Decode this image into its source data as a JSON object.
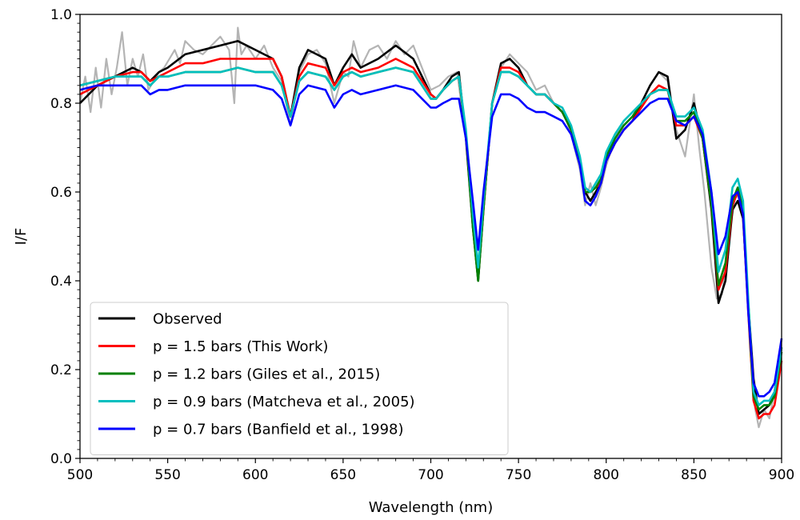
{
  "chart_data": {
    "type": "line",
    "title": "",
    "xlabel": "Wavelength (nm)",
    "ylabel": "I/F",
    "xlim": [
      500,
      900
    ],
    "ylim": [
      0.0,
      1.0
    ],
    "xticks": [
      500,
      550,
      600,
      650,
      700,
      750,
      800,
      850,
      900
    ],
    "xtick_labels": [
      "500",
      "550",
      "600",
      "650",
      "700",
      "750",
      "800",
      "850",
      "900"
    ],
    "yticks": [
      0.0,
      0.2,
      0.4,
      0.6,
      0.8,
      1.0
    ],
    "ytick_labels": [
      "0.0",
      "0.2",
      "0.4",
      "0.6",
      "0.8",
      "1.0"
    ],
    "grid": false,
    "legend_position": "lower-left",
    "noise_band": {
      "color": "#b4b4b4",
      "x": [
        500,
        503,
        506,
        509,
        512,
        515,
        518,
        521,
        524,
        527,
        530,
        533,
        536,
        539,
        542,
        545,
        548,
        551,
        554,
        557,
        560,
        565,
        570,
        575,
        580,
        585,
        588,
        590,
        592,
        595,
        600,
        605,
        610,
        615,
        620,
        625,
        630,
        635,
        640,
        645,
        650,
        653,
        656,
        660,
        665,
        670,
        675,
        680,
        685,
        690,
        695,
        700,
        705,
        710,
        715,
        720,
        725,
        727,
        730,
        735,
        740,
        745,
        750,
        755,
        760,
        765,
        770,
        775,
        780,
        785,
        788,
        791,
        794,
        797,
        800,
        805,
        810,
        815,
        820,
        825,
        830,
        835,
        840,
        845,
        850,
        853,
        856,
        860,
        863,
        866,
        870,
        874,
        878,
        882,
        885,
        887,
        890,
        893,
        896,
        900
      ],
      "values": [
        0.8,
        0.86,
        0.78,
        0.88,
        0.79,
        0.9,
        0.82,
        0.88,
        0.96,
        0.84,
        0.9,
        0.86,
        0.91,
        0.83,
        0.85,
        0.87,
        0.88,
        0.9,
        0.92,
        0.89,
        0.94,
        0.92,
        0.91,
        0.93,
        0.95,
        0.92,
        0.8,
        0.97,
        0.91,
        0.93,
        0.9,
        0.93,
        0.88,
        0.85,
        0.75,
        0.87,
        0.91,
        0.92,
        0.89,
        0.8,
        0.87,
        0.86,
        0.94,
        0.88,
        0.92,
        0.93,
        0.9,
        0.94,
        0.91,
        0.93,
        0.88,
        0.83,
        0.84,
        0.86,
        0.87,
        0.72,
        0.52,
        0.4,
        0.55,
        0.8,
        0.88,
        0.91,
        0.89,
        0.87,
        0.83,
        0.84,
        0.8,
        0.79,
        0.73,
        0.65,
        0.57,
        0.62,
        0.57,
        0.61,
        0.66,
        0.72,
        0.76,
        0.78,
        0.8,
        0.84,
        0.87,
        0.85,
        0.74,
        0.68,
        0.82,
        0.7,
        0.6,
        0.43,
        0.36,
        0.37,
        0.5,
        0.6,
        0.56,
        0.25,
        0.11,
        0.07,
        0.11,
        0.09,
        0.15,
        0.27
      ]
    },
    "x": [
      500,
      510,
      520,
      530,
      535,
      540,
      545,
      550,
      560,
      570,
      580,
      590,
      600,
      610,
      615,
      620,
      625,
      630,
      640,
      645,
      650,
      655,
      660,
      670,
      680,
      690,
      700,
      703,
      707,
      712,
      716,
      720,
      724,
      727,
      730,
      735,
      740,
      745,
      750,
      755,
      760,
      765,
      770,
      775,
      780,
      785,
      788,
      791,
      794,
      797,
      800,
      805,
      810,
      815,
      820,
      825,
      830,
      835,
      840,
      845,
      850,
      855,
      860,
      864,
      868,
      872,
      875,
      878,
      881,
      884,
      887,
      890,
      893,
      896,
      900
    ],
    "series": [
      {
        "name": "Observed",
        "color": "#000000",
        "values": [
          0.8,
          0.84,
          0.86,
          0.88,
          0.87,
          0.85,
          0.87,
          0.88,
          0.91,
          0.92,
          0.93,
          0.94,
          0.92,
          0.9,
          0.86,
          0.77,
          0.88,
          0.92,
          0.9,
          0.84,
          0.88,
          0.91,
          0.88,
          0.9,
          0.93,
          0.9,
          0.82,
          0.81,
          0.83,
          0.86,
          0.87,
          0.72,
          0.52,
          0.4,
          0.56,
          0.8,
          0.89,
          0.9,
          0.88,
          0.84,
          0.82,
          0.82,
          0.8,
          0.78,
          0.74,
          0.67,
          0.6,
          0.58,
          0.6,
          0.62,
          0.67,
          0.71,
          0.74,
          0.76,
          0.8,
          0.84,
          0.87,
          0.86,
          0.72,
          0.74,
          0.8,
          0.72,
          0.56,
          0.35,
          0.4,
          0.56,
          0.58,
          0.54,
          0.35,
          0.18,
          0.1,
          0.11,
          0.12,
          0.15,
          0.25
        ]
      },
      {
        "name": "p = 1.5 bars (This Work)",
        "color": "#ff0000",
        "values": [
          0.82,
          0.84,
          0.86,
          0.87,
          0.87,
          0.85,
          0.86,
          0.87,
          0.89,
          0.89,
          0.9,
          0.9,
          0.9,
          0.9,
          0.86,
          0.77,
          0.86,
          0.89,
          0.88,
          0.84,
          0.87,
          0.88,
          0.87,
          0.88,
          0.9,
          0.88,
          0.82,
          0.81,
          0.83,
          0.85,
          0.86,
          0.73,
          0.53,
          0.41,
          0.56,
          0.8,
          0.88,
          0.88,
          0.87,
          0.84,
          0.82,
          0.82,
          0.8,
          0.78,
          0.74,
          0.67,
          0.6,
          0.6,
          0.61,
          0.62,
          0.67,
          0.71,
          0.74,
          0.76,
          0.79,
          0.82,
          0.84,
          0.83,
          0.75,
          0.75,
          0.77,
          0.72,
          0.57,
          0.38,
          0.42,
          0.57,
          0.6,
          0.55,
          0.33,
          0.13,
          0.09,
          0.1,
          0.1,
          0.12,
          0.22
        ]
      },
      {
        "name": "p = 1.2 bars (Giles et al., 2015)",
        "color": "#008000",
        "values": [
          0.84,
          0.85,
          0.86,
          0.86,
          0.86,
          0.84,
          0.86,
          0.86,
          0.87,
          0.87,
          0.87,
          0.88,
          0.87,
          0.87,
          0.84,
          0.77,
          0.85,
          0.87,
          0.86,
          0.83,
          0.86,
          0.87,
          0.86,
          0.87,
          0.88,
          0.87,
          0.81,
          0.81,
          0.83,
          0.85,
          0.86,
          0.73,
          0.52,
          0.4,
          0.56,
          0.8,
          0.87,
          0.87,
          0.86,
          0.84,
          0.82,
          0.82,
          0.8,
          0.78,
          0.74,
          0.67,
          0.6,
          0.6,
          0.61,
          0.63,
          0.68,
          0.72,
          0.75,
          0.77,
          0.8,
          0.82,
          0.83,
          0.83,
          0.76,
          0.76,
          0.78,
          0.72,
          0.57,
          0.39,
          0.44,
          0.58,
          0.61,
          0.56,
          0.34,
          0.14,
          0.11,
          0.12,
          0.12,
          0.14,
          0.24
        ]
      },
      {
        "name": "p = 0.9 bars (Matcheva et al., 2005)",
        "color": "#00bfbf",
        "values": [
          0.84,
          0.85,
          0.86,
          0.86,
          0.86,
          0.84,
          0.86,
          0.86,
          0.87,
          0.87,
          0.87,
          0.88,
          0.87,
          0.87,
          0.84,
          0.77,
          0.85,
          0.87,
          0.86,
          0.83,
          0.86,
          0.87,
          0.86,
          0.87,
          0.88,
          0.87,
          0.81,
          0.81,
          0.83,
          0.85,
          0.86,
          0.74,
          0.55,
          0.43,
          0.58,
          0.8,
          0.87,
          0.87,
          0.86,
          0.84,
          0.82,
          0.82,
          0.8,
          0.79,
          0.75,
          0.68,
          0.61,
          0.6,
          0.62,
          0.64,
          0.69,
          0.73,
          0.76,
          0.78,
          0.8,
          0.82,
          0.83,
          0.83,
          0.77,
          0.77,
          0.79,
          0.74,
          0.6,
          0.42,
          0.47,
          0.61,
          0.63,
          0.58,
          0.36,
          0.15,
          0.12,
          0.13,
          0.13,
          0.15,
          0.25
        ]
      },
      {
        "name": "p = 0.7 bars (Banfield et al., 1998)",
        "color": "#0000ff",
        "values": [
          0.83,
          0.84,
          0.84,
          0.84,
          0.84,
          0.82,
          0.83,
          0.83,
          0.84,
          0.84,
          0.84,
          0.84,
          0.84,
          0.83,
          0.81,
          0.75,
          0.82,
          0.84,
          0.83,
          0.79,
          0.82,
          0.83,
          0.82,
          0.83,
          0.84,
          0.83,
          0.79,
          0.79,
          0.8,
          0.81,
          0.81,
          0.72,
          0.58,
          0.47,
          0.6,
          0.77,
          0.82,
          0.82,
          0.81,
          0.79,
          0.78,
          0.78,
          0.77,
          0.76,
          0.73,
          0.66,
          0.58,
          0.57,
          0.59,
          0.62,
          0.67,
          0.71,
          0.74,
          0.76,
          0.78,
          0.8,
          0.81,
          0.81,
          0.76,
          0.75,
          0.77,
          0.73,
          0.6,
          0.46,
          0.5,
          0.59,
          0.6,
          0.55,
          0.33,
          0.17,
          0.14,
          0.14,
          0.15,
          0.17,
          0.27
        ]
      }
    ]
  }
}
